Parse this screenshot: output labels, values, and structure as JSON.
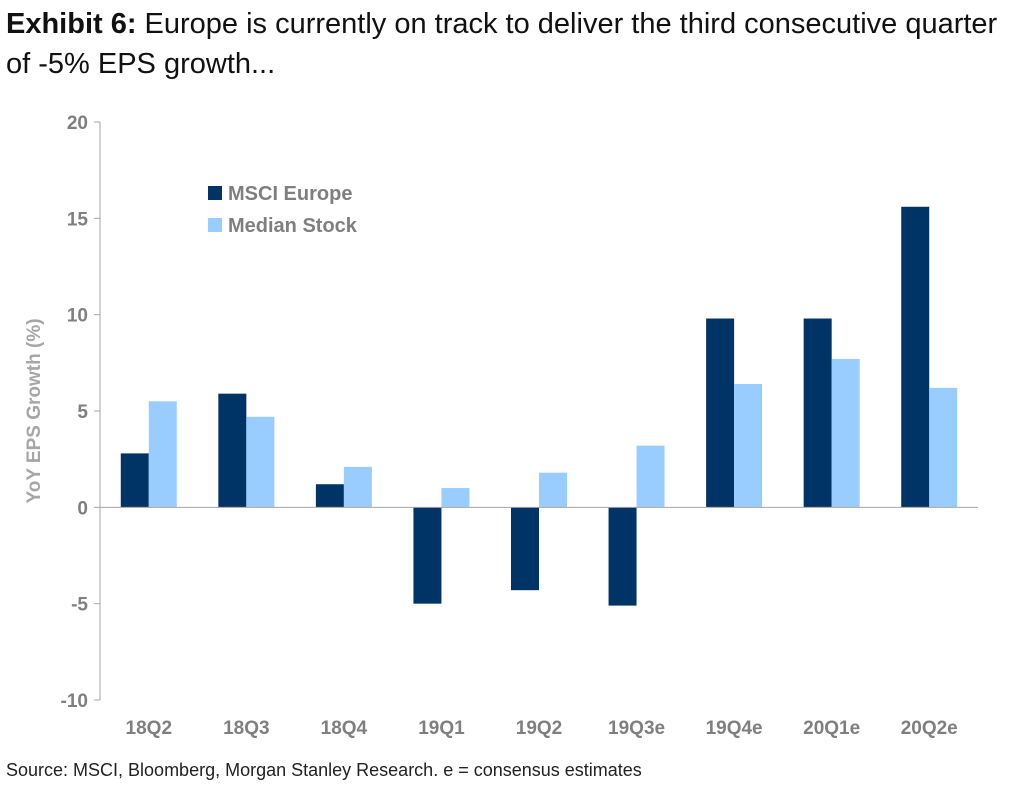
{
  "title": {
    "lead": "Exhibit 6:",
    "text": "Europe is currently on track to deliver the third consecutive quarter of -5% EPS growth..."
  },
  "source": "Source: MSCI, Bloomberg, Morgan Stanley Research. e = consensus estimates",
  "chart_data": {
    "type": "bar",
    "categories": [
      "18Q2",
      "18Q3",
      "18Q4",
      "19Q1",
      "19Q2",
      "19Q3e",
      "19Q4e",
      "20Q1e",
      "20Q2e"
    ],
    "series": [
      {
        "name": "MSCI Europe",
        "color": "#003366",
        "values": [
          2.8,
          5.9,
          1.2,
          -5.0,
          -4.3,
          -5.1,
          9.8,
          9.8,
          15.6
        ]
      },
      {
        "name": "Median Stock",
        "color": "#99ccff",
        "values": [
          5.5,
          4.7,
          2.1,
          1.0,
          1.8,
          3.2,
          6.4,
          7.7,
          6.2
        ]
      }
    ],
    "ylabel": "YoY EPS Growth (%)",
    "xlabel": "",
    "ylim": [
      -10,
      20
    ],
    "yticks": [
      -10,
      -5,
      0,
      5,
      10,
      15,
      20
    ],
    "grid": false,
    "legend": "top-left"
  }
}
